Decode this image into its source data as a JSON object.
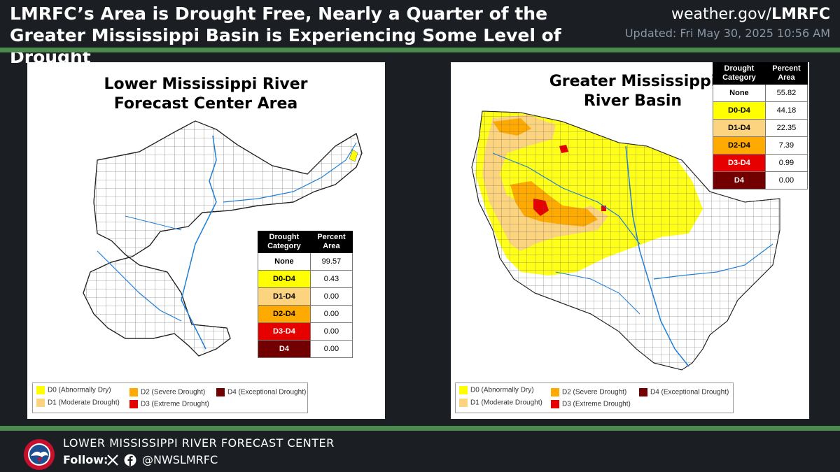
{
  "header": {
    "title": "LMRFC’s Area is Drought Free, Nearly a Quarter of the Greater Mississippi Basin is Experiencing Some Level of Drought",
    "site_prefix": "weather.gov/",
    "site_bold": "LMRFC",
    "updated": "Updated: Fri May 30, 2025 10:56 AM"
  },
  "left_map": {
    "title": "Lower Mississippi River Forecast Center Area",
    "table": {
      "col1": "Drought Category",
      "col2": "Percent Area",
      "rows": [
        {
          "category": "None",
          "value": "99.57"
        },
        {
          "category": "D0-D4",
          "value": "0.43"
        },
        {
          "category": "D1-D4",
          "value": "0.00"
        },
        {
          "category": "D2-D4",
          "value": "0.00"
        },
        {
          "category": "D3-D4",
          "value": "0.00"
        },
        {
          "category": "D4",
          "value": "0.00"
        }
      ]
    }
  },
  "right_map": {
    "title": "Greater Mississippi River Basin",
    "table": {
      "col1": "Drought Category",
      "col2": "Percent Area",
      "rows": [
        {
          "category": "None",
          "value": "55.82"
        },
        {
          "category": "D0-D4",
          "value": "44.18"
        },
        {
          "category": "D1-D4",
          "value": "22.35"
        },
        {
          "category": "D2-D4",
          "value": "7.39"
        },
        {
          "category": "D3-D4",
          "value": "0.99"
        },
        {
          "category": "D4",
          "value": "0.00"
        }
      ]
    }
  },
  "legend": {
    "d0": "D0 (Abnormally Dry)",
    "d1": "D1 (Moderate Drought)",
    "d2": "D2 (Severe Drought)",
    "d3": "D3 (Extreme Drought)",
    "d4": "D4 (Exceptional Drought)"
  },
  "colors": {
    "none": "#ffffff",
    "d0": "#ffff00",
    "d1": "#fcd37f",
    "d2": "#ffaa00",
    "d3": "#e60000",
    "d4": "#730000",
    "accent_bar": "#4d8a4f",
    "background": "#1b1f24"
  },
  "footer": {
    "org": "LOWER MISSISSIPPI RIVER FORECAST CENTER",
    "follow": "Follow:",
    "handle": "@NWSLMRFC",
    "icons": [
      "x-icon",
      "facebook-icon"
    ]
  }
}
